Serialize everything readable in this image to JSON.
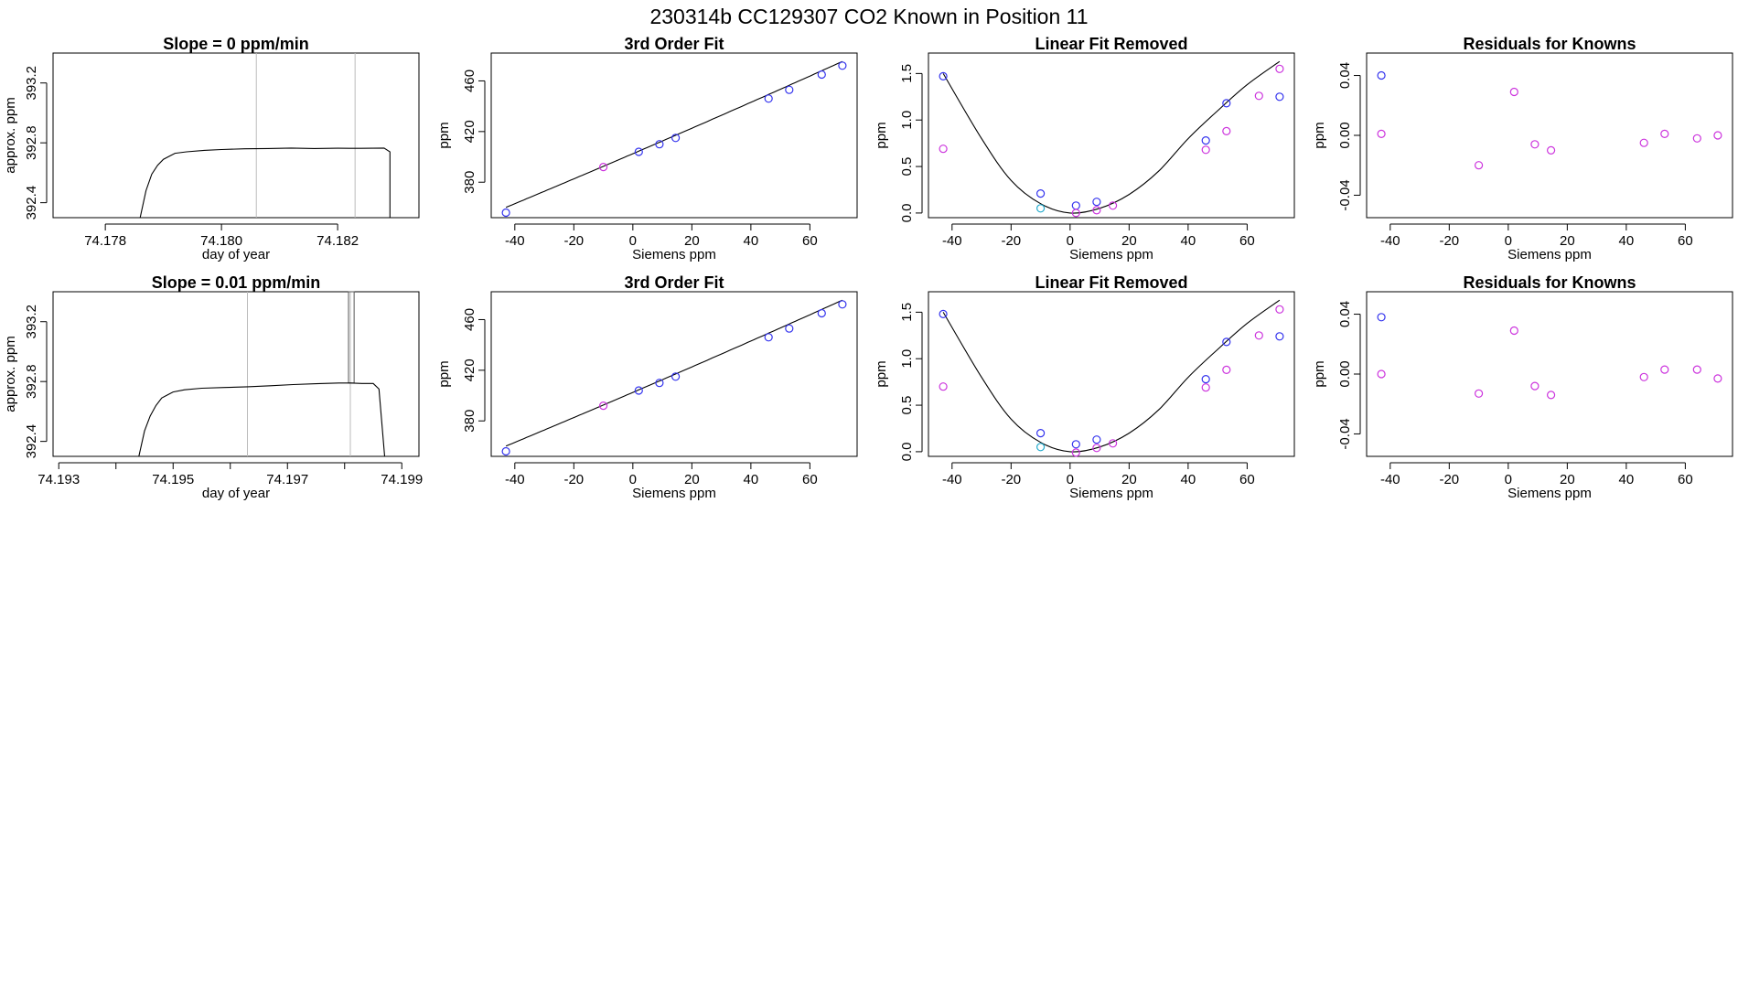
{
  "figure": {
    "title": "230314b      CC129307   CO2 Known in Position  11"
  },
  "colors": {
    "blue": "#3333ee",
    "magenta": "#cc33dd",
    "cyan": "#22aacc",
    "line": "#000000",
    "marker_vline": "#bbbbbb",
    "spike": "#555555"
  },
  "chart_data": [
    {
      "id": "p1r1",
      "type": "line",
      "title": "Slope =  0  ppm/min",
      "xlabel": "day of year",
      "ylabel": "approx. ppm",
      "xlim": [
        74.1771,
        74.1834
      ],
      "ylim": [
        392.3,
        393.4
      ],
      "xticks": [
        74.178,
        74.18,
        74.182
      ],
      "xtick_labels": [
        "74.178",
        "74.180",
        "74.182"
      ],
      "yticks": [
        392.4,
        392.8,
        393.2
      ],
      "ytick_labels": [
        "392.4",
        "392.8",
        "393.2"
      ],
      "vlines": [
        74.1806,
        74.1823
      ],
      "series": [
        {
          "name": "signal",
          "points": [
            [
              74.1786,
              392.3
            ],
            [
              74.1787,
              392.48
            ],
            [
              74.1788,
              392.59
            ],
            [
              74.1789,
              392.65
            ],
            [
              74.179,
              392.69
            ],
            [
              74.1791,
              392.71
            ],
            [
              74.1792,
              392.73
            ],
            [
              74.1794,
              392.74
            ],
            [
              74.1797,
              392.75
            ],
            [
              74.18,
              392.755
            ],
            [
              74.1804,
              392.76
            ],
            [
              74.1808,
              392.762
            ],
            [
              74.1812,
              392.765
            ],
            [
              74.1816,
              392.762
            ],
            [
              74.182,
              392.764
            ],
            [
              74.1824,
              392.763
            ],
            [
              74.1828,
              392.765
            ],
            [
              74.1828,
              392.765
            ],
            [
              74.1829,
              392.74
            ],
            [
              74.1829,
              392.3
            ]
          ]
        }
      ]
    },
    {
      "id": "p2r1",
      "type": "scatter",
      "title": "3rd Order Fit",
      "xlabel": "Siemens ppm",
      "ylabel": "ppm",
      "xlim": [
        -48,
        76
      ],
      "ylim": [
        352,
        482
      ],
      "xticks": [
        -40,
        -20,
        0,
        20,
        40,
        60
      ],
      "xtick_labels": [
        "-40",
        "-20",
        "0",
        "20",
        "40",
        "60"
      ],
      "yticks": [
        380,
        420,
        460
      ],
      "ytick_labels": [
        "380",
        "420",
        "460"
      ],
      "fit": {
        "kind": "poly",
        "coef": [
          402.5,
          1.0,
          0.00035,
          3e-07
        ],
        "range": [
          -43,
          71
        ]
      },
      "points": [
        {
          "x": -43,
          "y": 356,
          "c": "blue"
        },
        {
          "x": -10,
          "y": 392,
          "c": "magenta"
        },
        {
          "x": 2,
          "y": 404,
          "c": "blue"
        },
        {
          "x": 9,
          "y": 410,
          "c": "blue"
        },
        {
          "x": 14.5,
          "y": 415,
          "c": "blue"
        },
        {
          "x": 46,
          "y": 446,
          "c": "blue"
        },
        {
          "x": 53,
          "y": 453,
          "c": "blue"
        },
        {
          "x": 64,
          "y": 465,
          "c": "blue"
        },
        {
          "x": 71,
          "y": 472,
          "c": "blue"
        }
      ]
    },
    {
      "id": "p3r1",
      "type": "scatter",
      "title": "Linear Fit Removed",
      "xlabel": "Siemens ppm",
      "ylabel": "ppm",
      "xlim": [
        -48,
        76
      ],
      "ylim": [
        -0.05,
        1.72
      ],
      "xticks": [
        -40,
        -20,
        0,
        20,
        40,
        60
      ],
      "xtick_labels": [
        "-40",
        "-20",
        "0",
        "20",
        "40",
        "60"
      ],
      "yticks": [
        0.0,
        0.5,
        1.0,
        1.5
      ],
      "ytick_labels": [
        "0.0",
        "0.5",
        "1.0",
        "1.5"
      ],
      "fit": {
        "kind": "curve",
        "range": [
          -43,
          71
        ],
        "points": [
          [
            -43,
            1.5
          ],
          [
            -30,
            0.8
          ],
          [
            -20,
            0.35
          ],
          [
            -10,
            0.1
          ],
          [
            0,
            0.0
          ],
          [
            10,
            0.05
          ],
          [
            20,
            0.2
          ],
          [
            30,
            0.45
          ],
          [
            40,
            0.8
          ],
          [
            50,
            1.1
          ],
          [
            60,
            1.38
          ],
          [
            71,
            1.63
          ]
        ]
      },
      "points": [
        {
          "x": -43,
          "y": 1.47,
          "c": "blue"
        },
        {
          "x": -43,
          "y": 0.69,
          "c": "magenta"
        },
        {
          "x": -10,
          "y": 0.21,
          "c": "blue"
        },
        {
          "x": -10,
          "y": 0.05,
          "c": "cyan"
        },
        {
          "x": 2,
          "y": 0.08,
          "c": "blue"
        },
        {
          "x": 2,
          "y": 0.0,
          "c": "magenta"
        },
        {
          "x": 9,
          "y": 0.12,
          "c": "blue"
        },
        {
          "x": 9,
          "y": 0.03,
          "c": "magenta"
        },
        {
          "x": 14.5,
          "y": 0.08,
          "c": "magenta"
        },
        {
          "x": 46,
          "y": 0.78,
          "c": "blue"
        },
        {
          "x": 46,
          "y": 0.68,
          "c": "magenta"
        },
        {
          "x": 53,
          "y": 1.18,
          "c": "blue"
        },
        {
          "x": 53,
          "y": 0.88,
          "c": "magenta"
        },
        {
          "x": 64,
          "y": 1.26,
          "c": "magenta"
        },
        {
          "x": 71,
          "y": 1.25,
          "c": "blue"
        },
        {
          "x": 71,
          "y": 1.55,
          "c": "magenta"
        }
      ]
    },
    {
      "id": "p4r1",
      "type": "scatter",
      "title": "Residuals for Knowns",
      "xlabel": "Siemens ppm",
      "ylabel": "ppm",
      "xlim": [
        -48,
        76
      ],
      "ylim": [
        -0.055,
        0.055
      ],
      "xticks": [
        -40,
        -20,
        0,
        20,
        40,
        60
      ],
      "xtick_labels": [
        "-40",
        "-20",
        "0",
        "20",
        "40",
        "60"
      ],
      "yticks": [
        -0.04,
        0.0,
        0.04
      ],
      "ytick_labels": [
        "-0.04",
        "0.00",
        "0.04"
      ],
      "points": [
        {
          "x": -43,
          "y": 0.04,
          "c": "blue"
        },
        {
          "x": -43,
          "y": 0.001,
          "c": "magenta"
        },
        {
          "x": -10,
          "y": -0.02,
          "c": "magenta"
        },
        {
          "x": 2,
          "y": 0.029,
          "c": "magenta"
        },
        {
          "x": 9,
          "y": -0.006,
          "c": "magenta"
        },
        {
          "x": 14.5,
          "y": -0.01,
          "c": "magenta"
        },
        {
          "x": 46,
          "y": -0.005,
          "c": "magenta"
        },
        {
          "x": 53,
          "y": 0.001,
          "c": "magenta"
        },
        {
          "x": 64,
          "y": -0.002,
          "c": "magenta"
        },
        {
          "x": 71,
          "y": 0.0,
          "c": "magenta"
        }
      ]
    },
    {
      "id": "p1r2",
      "type": "line",
      "title": "Slope =  0.01  ppm/min",
      "xlabel": "day of year",
      "ylabel": "approx. ppm",
      "xlim": [
        74.1929,
        74.1993
      ],
      "ylim": [
        392.3,
        393.4
      ],
      "xticks": [
        74.193,
        74.194,
        74.195,
        74.196,
        74.197,
        74.198,
        74.199
      ],
      "xtick_labels": [
        "74.193",
        "",
        "74.195",
        "",
        "74.197",
        "",
        "74.199"
      ],
      "yticks": [
        392.4,
        392.8,
        393.2
      ],
      "ytick_labels": [
        "392.4",
        "392.8",
        "393.2"
      ],
      "vlines": [
        74.1963,
        74.1981
      ],
      "spike": [
        74.1981,
        74.19815,
        393.4
      ],
      "series": [
        {
          "name": "signal",
          "points": [
            [
              74.1944,
              392.3
            ],
            [
              74.1945,
              392.47
            ],
            [
              74.1946,
              392.57
            ],
            [
              74.1947,
              392.64
            ],
            [
              74.1948,
              392.69
            ],
            [
              74.1949,
              392.71
            ],
            [
              74.195,
              392.73
            ],
            [
              74.1952,
              392.745
            ],
            [
              74.1955,
              392.755
            ],
            [
              74.1959,
              392.76
            ],
            [
              74.1963,
              392.765
            ],
            [
              74.1967,
              392.772
            ],
            [
              74.1971,
              392.78
            ],
            [
              74.1975,
              392.785
            ],
            [
              74.1979,
              392.79
            ],
            [
              74.1981,
              392.79
            ],
            [
              74.1983,
              392.787
            ],
            [
              74.1985,
              392.787
            ],
            [
              74.1986,
              392.75
            ],
            [
              74.1987,
              392.3
            ]
          ]
        }
      ]
    },
    {
      "id": "p2r2",
      "type": "scatter",
      "title": "3rd Order Fit",
      "xlabel": "Siemens ppm",
      "ylabel": "ppm",
      "xlim": [
        -48,
        76
      ],
      "ylim": [
        352,
        482
      ],
      "xticks": [
        -40,
        -20,
        0,
        20,
        40,
        60
      ],
      "xtick_labels": [
        "-40",
        "-20",
        "0",
        "20",
        "40",
        "60"
      ],
      "yticks": [
        380,
        420,
        460
      ],
      "ytick_labels": [
        "380",
        "420",
        "460"
      ],
      "fit": {
        "kind": "poly",
        "coef": [
          402.5,
          1.0,
          0.00035,
          3e-07
        ],
        "range": [
          -43,
          71
        ]
      },
      "points": [
        {
          "x": -43,
          "y": 356,
          "c": "blue"
        },
        {
          "x": -10,
          "y": 392,
          "c": "magenta"
        },
        {
          "x": 2,
          "y": 404,
          "c": "blue"
        },
        {
          "x": 9,
          "y": 410,
          "c": "blue"
        },
        {
          "x": 14.5,
          "y": 415,
          "c": "blue"
        },
        {
          "x": 46,
          "y": 446,
          "c": "blue"
        },
        {
          "x": 53,
          "y": 453,
          "c": "blue"
        },
        {
          "x": 64,
          "y": 465,
          "c": "blue"
        },
        {
          "x": 71,
          "y": 472,
          "c": "blue"
        }
      ]
    },
    {
      "id": "p3r2",
      "type": "scatter",
      "title": "Linear Fit Removed",
      "xlabel": "Siemens ppm",
      "ylabel": "ppm",
      "xlim": [
        -48,
        76
      ],
      "ylim": [
        -0.05,
        1.72
      ],
      "xticks": [
        -40,
        -20,
        0,
        20,
        40,
        60
      ],
      "xtick_labels": [
        "-40",
        "-20",
        "0",
        "20",
        "40",
        "60"
      ],
      "yticks": [
        0.0,
        0.5,
        1.0,
        1.5
      ],
      "ytick_labels": [
        "0.0",
        "0.5",
        "1.0",
        "1.5"
      ],
      "fit": {
        "kind": "curve",
        "range": [
          -43,
          71
        ],
        "points": [
          [
            -43,
            1.5
          ],
          [
            -30,
            0.8
          ],
          [
            -20,
            0.35
          ],
          [
            -10,
            0.1
          ],
          [
            0,
            0.0
          ],
          [
            10,
            0.05
          ],
          [
            20,
            0.2
          ],
          [
            30,
            0.45
          ],
          [
            40,
            0.8
          ],
          [
            50,
            1.1
          ],
          [
            60,
            1.38
          ],
          [
            71,
            1.63
          ]
        ]
      },
      "points": [
        {
          "x": -43,
          "y": 1.48,
          "c": "blue"
        },
        {
          "x": -43,
          "y": 0.7,
          "c": "magenta"
        },
        {
          "x": -10,
          "y": 0.2,
          "c": "blue"
        },
        {
          "x": -10,
          "y": 0.05,
          "c": "cyan"
        },
        {
          "x": 2,
          "y": 0.08,
          "c": "blue"
        },
        {
          "x": 2,
          "y": -0.01,
          "c": "magenta"
        },
        {
          "x": 9,
          "y": 0.13,
          "c": "blue"
        },
        {
          "x": 9,
          "y": 0.04,
          "c": "magenta"
        },
        {
          "x": 14.5,
          "y": 0.09,
          "c": "magenta"
        },
        {
          "x": 46,
          "y": 0.78,
          "c": "blue"
        },
        {
          "x": 46,
          "y": 0.69,
          "c": "magenta"
        },
        {
          "x": 53,
          "y": 1.18,
          "c": "blue"
        },
        {
          "x": 53,
          "y": 0.88,
          "c": "magenta"
        },
        {
          "x": 64,
          "y": 1.25,
          "c": "magenta"
        },
        {
          "x": 71,
          "y": 1.24,
          "c": "blue"
        },
        {
          "x": 71,
          "y": 1.53,
          "c": "magenta"
        }
      ]
    },
    {
      "id": "p4r2",
      "type": "scatter",
      "title": "Residuals for Knowns",
      "xlabel": "Siemens ppm",
      "ylabel": "ppm",
      "xlim": [
        -48,
        76
      ],
      "ylim": [
        -0.055,
        0.055
      ],
      "xticks": [
        -40,
        -20,
        0,
        20,
        40,
        60
      ],
      "xtick_labels": [
        "-40",
        "-20",
        "0",
        "20",
        "40",
        "60"
      ],
      "yticks": [
        -0.04,
        0.0,
        0.04
      ],
      "ytick_labels": [
        "-0.04",
        "0.00",
        "0.04"
      ],
      "points": [
        {
          "x": -43,
          "y": 0.038,
          "c": "blue"
        },
        {
          "x": -43,
          "y": 0.0,
          "c": "magenta"
        },
        {
          "x": -10,
          "y": -0.013,
          "c": "magenta"
        },
        {
          "x": 2,
          "y": 0.029,
          "c": "magenta"
        },
        {
          "x": 9,
          "y": -0.008,
          "c": "magenta"
        },
        {
          "x": 14.5,
          "y": -0.014,
          "c": "magenta"
        },
        {
          "x": 46,
          "y": -0.002,
          "c": "magenta"
        },
        {
          "x": 53,
          "y": 0.003,
          "c": "magenta"
        },
        {
          "x": 64,
          "y": 0.003,
          "c": "magenta"
        },
        {
          "x": 71,
          "y": -0.003,
          "c": "magenta"
        }
      ]
    }
  ]
}
